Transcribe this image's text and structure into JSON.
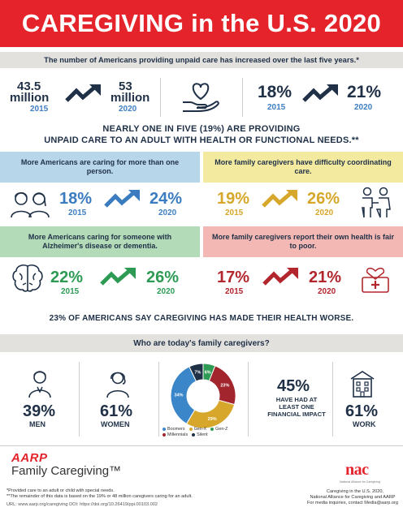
{
  "header": {
    "title": "CAREGIVING in the U.S. 2020"
  },
  "subheader": "The number of Americans providing unpaid care has increased over the last five years.*",
  "top_stats": {
    "left": {
      "value_2015": "43.5",
      "unit_2015": "million",
      "year_2015": "2015",
      "value_2020": "53",
      "unit_2020": "million",
      "year_2020": "2020"
    },
    "right": {
      "value_2015": "18%",
      "year_2015": "2015",
      "value_2020": "21%",
      "year_2020": "2020"
    }
  },
  "nearly": {
    "line1": "NEARLY ONE IN FIVE (19%) ARE PROVIDING",
    "line2": "UNPAID CARE TO AN ADULT WITH HEALTH OR FUNCTIONAL NEEDS.**"
  },
  "panels": [
    {
      "label": "More Americans are caring for more than one person.",
      "v2015": "18%",
      "v2020": "24%",
      "y2015": "2015",
      "y2020": "2020",
      "color": "#3a7cbf",
      "bg": "#b7d6ea"
    },
    {
      "label": "More family caregivers have difficulty coordinating care.",
      "v2015": "19%",
      "v2020": "26%",
      "y2015": "2015",
      "y2020": "2020",
      "color": "#d6a72a",
      "bg": "#f3eaa0"
    },
    {
      "label": "More Americans caring for someone with Alzheimer's disease or dementia.",
      "v2015": "22%",
      "v2020": "26%",
      "y2015": "2015",
      "y2020": "2020",
      "color": "#2e9b55",
      "bg": "#b3dbb7"
    },
    {
      "label": "More family caregivers report their own health is fair to poor.",
      "v2015": "17%",
      "v2020": "21%",
      "y2015": "2015",
      "y2020": "2020",
      "color": "#b3262e",
      "bg": "#f4b8b4"
    }
  ],
  "health_worse": "23% OF AMERICANS SAY CAREGIVING HAS MADE THEIR HEALTH WORSE.",
  "who": "Who are today's family caregivers?",
  "demographics": {
    "men": {
      "pct": "39%",
      "label": "MEN"
    },
    "women": {
      "pct": "61%",
      "label": "WOMEN"
    },
    "financial": {
      "pct": "45%",
      "label_lines": [
        "HAVE HAD AT",
        "LEAST ONE",
        "FINANCIAL IMPACT"
      ]
    },
    "work": {
      "pct": "61%",
      "label": "WORK"
    }
  },
  "chart_data": {
    "type": "pie",
    "style": "donut",
    "categories": [
      "Boomers",
      "Gen-X",
      "Millennials",
      "Silent",
      "Gen-Z"
    ],
    "values": [
      34,
      29,
      23,
      7,
      6
    ],
    "value_labels": [
      "34%",
      "29%",
      "23%",
      "7%",
      "6%"
    ],
    "colors": [
      "#3a86c8",
      "#d6a72a",
      "#a2252d",
      "#1f3047",
      "#2e9b55"
    ],
    "legend": [
      "Boomers",
      "Gen-X",
      "Gen-Z",
      "Millennials",
      "Silent"
    ],
    "legend_placement": "bottom"
  },
  "footer": {
    "brand": "AARP",
    "brand_sub": "Family Caregiving™",
    "note1": "*Provided care to an adult or child with special needs.",
    "note2": "**The remainder of this data is based on the 19% or 48 million caregivers caring for an adult.",
    "url": "URL: www.aarp.org/caregiving    DOI: https://doi.org/10.26419/ppi.00103.002",
    "nac_mark": "nac",
    "nac_sub": "National Alliance for Caregiving",
    "right1": "Caregiving in the U.S. 2020,",
    "right2": "National Alliance for Caregiving and AARP",
    "right3": "For media inquiries, contact Media@aarp.org"
  }
}
